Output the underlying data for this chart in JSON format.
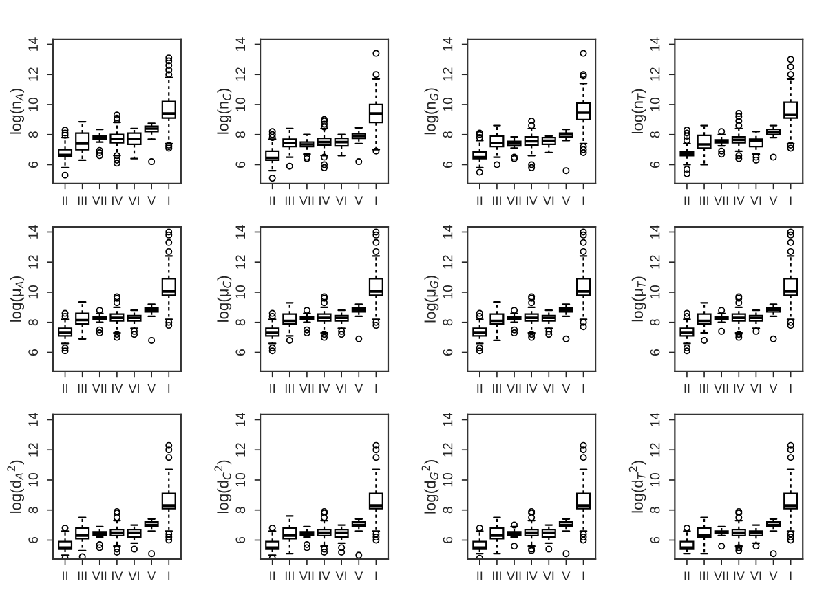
{
  "chart_data": [
    {
      "type": "box",
      "ylabel": "log(n$_{A}$)",
      "categories": [
        "II",
        "III",
        "VII",
        "IV",
        "VI",
        "V",
        "I"
      ],
      "ylim": [
        4.75,
        14.35
      ],
      "yticks": [
        6,
        8,
        10,
        12,
        14
      ],
      "boxes": [
        {
          "low": 5.8,
          "q1": 6.55,
          "median": 6.65,
          "q3": 7.0,
          "high": 7.8,
          "outliers": [
            5.3,
            7.95,
            8.1,
            8.3
          ]
        },
        {
          "low": 6.3,
          "q1": 7.0,
          "median": 7.4,
          "q3": 8.1,
          "high": 8.85
        },
        {
          "low": 7.5,
          "q1": 7.7,
          "median": 7.8,
          "q3": 7.9,
          "high": 8.35,
          "outliers": [
            6.6,
            6.8,
            6.95
          ]
        },
        {
          "low": 6.6,
          "q1": 7.45,
          "median": 7.7,
          "q3": 8.0,
          "high": 8.8,
          "outliers": [
            6.1,
            6.3,
            6.6,
            9.0,
            9.1,
            9.3
          ]
        },
        {
          "low": 6.4,
          "q1": 7.35,
          "median": 7.7,
          "q3": 8.1,
          "high": 8.4
        },
        {
          "low": 7.7,
          "q1": 8.2,
          "median": 8.4,
          "q3": 8.55,
          "high": 8.75,
          "outliers": [
            6.2
          ]
        },
        {
          "low": 7.4,
          "q1": 9.1,
          "median": 9.4,
          "q3": 10.2,
          "high": 11.8,
          "outliers": [
            7.1,
            7.2,
            7.3,
            12.0,
            12.3,
            12.6,
            12.9,
            13.1
          ]
        }
      ]
    },
    {
      "type": "box",
      "ylabel": "log(n$_{C}$)",
      "categories": [
        "II",
        "III",
        "VII",
        "IV",
        "VI",
        "V",
        "I"
      ],
      "ylim": [
        4.75,
        14.35
      ],
      "yticks": [
        6,
        8,
        10,
        12,
        14
      ],
      "boxes": [
        {
          "low": 5.6,
          "q1": 6.3,
          "median": 6.45,
          "q3": 6.9,
          "high": 7.7,
          "outliers": [
            5.1,
            7.8,
            8.0,
            8.2
          ]
        },
        {
          "low": 6.5,
          "q1": 7.2,
          "median": 7.45,
          "q3": 7.7,
          "high": 8.4,
          "outliers": [
            5.9
          ]
        },
        {
          "low": 6.7,
          "q1": 7.2,
          "median": 7.35,
          "q3": 7.5,
          "high": 8.0,
          "outliers": [
            6.4,
            6.5
          ]
        },
        {
          "low": 6.6,
          "q1": 7.3,
          "median": 7.5,
          "q3": 7.75,
          "high": 8.4,
          "outliers": [
            5.8,
            6.0,
            6.5,
            8.5,
            8.7,
            8.9,
            9.0
          ]
        },
        {
          "low": 6.6,
          "q1": 7.25,
          "median": 7.5,
          "q3": 7.75,
          "high": 8.0
        },
        {
          "low": 7.4,
          "q1": 7.75,
          "median": 7.9,
          "q3": 8.05,
          "high": 8.45,
          "outliers": [
            6.2
          ]
        },
        {
          "low": 7.0,
          "q1": 8.8,
          "median": 9.4,
          "q3": 10.0,
          "high": 11.7,
          "outliers": [
            6.9,
            12.0,
            13.4
          ]
        }
      ]
    },
    {
      "type": "box",
      "ylabel": "log(n$_{G}$)",
      "categories": [
        "II",
        "III",
        "VII",
        "IV",
        "VI",
        "V",
        "I"
      ],
      "ylim": [
        4.75,
        14.35
      ],
      "yticks": [
        6,
        8,
        10,
        12,
        14
      ],
      "boxes": [
        {
          "low": 5.8,
          "q1": 6.4,
          "median": 6.5,
          "q3": 6.85,
          "high": 7.6,
          "outliers": [
            5.5,
            7.8,
            8.0,
            8.1
          ]
        },
        {
          "low": 6.5,
          "q1": 7.2,
          "median": 7.45,
          "q3": 7.9,
          "high": 8.6,
          "outliers": [
            6.0
          ]
        },
        {
          "low": 7.1,
          "q1": 7.25,
          "median": 7.4,
          "q3": 7.55,
          "high": 7.85,
          "outliers": [
            6.4,
            6.5
          ]
        },
        {
          "low": 6.6,
          "q1": 7.3,
          "median": 7.55,
          "q3": 7.85,
          "high": 8.4,
          "outliers": [
            5.8,
            6.0,
            8.6,
            8.9
          ]
        },
        {
          "low": 6.8,
          "q1": 7.35,
          "median": 7.6,
          "q3": 7.8,
          "high": 7.9
        },
        {
          "low": 7.6,
          "q1": 7.85,
          "median": 8.0,
          "q3": 8.1,
          "high": 8.35,
          "outliers": [
            5.6
          ]
        },
        {
          "low": 7.4,
          "q1": 9.0,
          "median": 9.45,
          "q3": 10.1,
          "high": 11.4,
          "outliers": [
            6.8,
            7.0,
            7.2,
            11.9,
            12.0,
            13.4
          ]
        }
      ]
    },
    {
      "type": "box",
      "ylabel": "log(n$_{T}$)",
      "categories": [
        "II",
        "III",
        "VII",
        "IV",
        "VI",
        "V",
        "I"
      ],
      "ylim": [
        4.75,
        14.35
      ],
      "yticks": [
        6,
        8,
        10,
        12,
        14
      ],
      "boxes": [
        {
          "low": 6.0,
          "q1": 6.6,
          "median": 6.7,
          "q3": 6.85,
          "high": 7.4,
          "outliers": [
            5.4,
            5.7,
            7.6,
            7.9,
            8.1,
            8.3
          ]
        },
        {
          "low": 6.0,
          "q1": 7.1,
          "median": 7.35,
          "q3": 7.95,
          "high": 8.6
        },
        {
          "low": 7.25,
          "q1": 7.45,
          "median": 7.55,
          "q3": 7.65,
          "high": 8.0,
          "outliers": [
            6.7,
            6.9,
            8.2
          ]
        },
        {
          "low": 6.9,
          "q1": 7.45,
          "median": 7.65,
          "q3": 7.85,
          "high": 8.4,
          "outliers": [
            6.4,
            6.6,
            8.6,
            8.9,
            9.2,
            9.4
          ]
        },
        {
          "low": 6.7,
          "q1": 7.2,
          "median": 7.6,
          "q3": 7.7,
          "high": 8.2,
          "outliers": [
            6.3,
            6.5
          ]
        },
        {
          "low": 7.8,
          "q1": 8.0,
          "median": 8.15,
          "q3": 8.35,
          "high": 8.6,
          "outliers": [
            6.5
          ]
        },
        {
          "low": 7.4,
          "q1": 9.1,
          "median": 9.3,
          "q3": 10.15,
          "high": 11.7,
          "outliers": [
            7.1,
            7.3,
            12.0,
            12.5,
            13.0
          ]
        }
      ]
    },
    {
      "type": "box",
      "ylabel": "log(μ$_{A}$)",
      "categories": [
        "II",
        "III",
        "VII",
        "IV",
        "VI",
        "V",
        "I"
      ],
      "ylim": [
        4.75,
        14.35
      ],
      "yticks": [
        6,
        8,
        10,
        12,
        14
      ],
      "boxes": [
        {
          "low": 6.6,
          "q1": 7.1,
          "median": 7.3,
          "q3": 7.6,
          "high": 8.2,
          "outliers": [
            6.1,
            6.3,
            8.4,
            8.6
          ]
        },
        {
          "low": 6.9,
          "q1": 7.9,
          "median": 8.15,
          "q3": 8.6,
          "high": 9.35
        },
        {
          "low": 8.0,
          "q1": 8.2,
          "median": 8.3,
          "q3": 8.35,
          "high": 8.6,
          "outliers": [
            7.3,
            7.5,
            8.8
          ]
        },
        {
          "low": 7.3,
          "q1": 8.1,
          "median": 8.3,
          "q3": 8.55,
          "high": 9.0,
          "outliers": [
            7.0,
            7.2,
            9.3,
            9.6,
            9.7
          ]
        },
        {
          "low": 7.6,
          "q1": 8.1,
          "median": 8.3,
          "q3": 8.45,
          "high": 8.8,
          "outliers": [
            7.2,
            7.4
          ]
        },
        {
          "low": 8.4,
          "q1": 8.7,
          "median": 8.8,
          "q3": 8.95,
          "high": 9.2,
          "outliers": [
            6.8
          ]
        },
        {
          "low": 8.2,
          "q1": 9.8,
          "median": 10.05,
          "q3": 10.9,
          "high": 12.4,
          "outliers": [
            7.8,
            8.0,
            12.7,
            13.3,
            13.8,
            14.0
          ]
        }
      ]
    },
    {
      "type": "box",
      "ylabel": "log(μ$_{C}$)",
      "categories": [
        "II",
        "III",
        "VII",
        "IV",
        "VI",
        "V",
        "I"
      ],
      "ylim": [
        4.75,
        14.35
      ],
      "yticks": [
        6,
        8,
        10,
        12,
        14
      ],
      "boxes": [
        {
          "low": 6.6,
          "q1": 7.1,
          "median": 7.3,
          "q3": 7.6,
          "high": 8.2,
          "outliers": [
            6.1,
            6.3,
            8.4,
            8.6
          ]
        },
        {
          "low": 7.1,
          "q1": 7.9,
          "median": 8.1,
          "q3": 8.55,
          "high": 9.3,
          "outliers": [
            6.8
          ]
        },
        {
          "low": 8.0,
          "q1": 8.2,
          "median": 8.3,
          "q3": 8.35,
          "high": 8.6,
          "outliers": [
            7.3,
            7.5,
            8.8
          ]
        },
        {
          "low": 7.3,
          "q1": 8.1,
          "median": 8.3,
          "q3": 8.55,
          "high": 9.0,
          "outliers": [
            7.0,
            7.2,
            9.3,
            9.6,
            9.7
          ]
        },
        {
          "low": 7.6,
          "q1": 8.1,
          "median": 8.3,
          "q3": 8.45,
          "high": 8.8,
          "outliers": [
            7.2,
            7.4
          ]
        },
        {
          "low": 8.4,
          "q1": 8.7,
          "median": 8.8,
          "q3": 8.95,
          "high": 9.2,
          "outliers": [
            6.9
          ]
        },
        {
          "low": 8.2,
          "q1": 9.8,
          "median": 10.05,
          "q3": 10.9,
          "high": 12.4,
          "outliers": [
            7.8,
            8.0,
            12.7,
            13.3,
            13.8,
            14.0
          ]
        }
      ]
    },
    {
      "type": "box",
      "ylabel": "log(μ$_{G}$)",
      "categories": [
        "II",
        "III",
        "VII",
        "IV",
        "VI",
        "V",
        "I"
      ],
      "ylim": [
        4.75,
        14.35
      ],
      "yticks": [
        6,
        8,
        10,
        12,
        14
      ],
      "boxes": [
        {
          "low": 6.6,
          "q1": 7.1,
          "median": 7.3,
          "q3": 7.6,
          "high": 8.2,
          "outliers": [
            6.1,
            6.3,
            8.4,
            8.6
          ]
        },
        {
          "low": 6.8,
          "q1": 7.9,
          "median": 8.1,
          "q3": 8.55,
          "high": 9.35
        },
        {
          "low": 8.0,
          "q1": 8.2,
          "median": 8.3,
          "q3": 8.35,
          "high": 8.6,
          "outliers": [
            7.3,
            7.5,
            8.8
          ]
        },
        {
          "low": 7.3,
          "q1": 8.1,
          "median": 8.3,
          "q3": 8.55,
          "high": 9.0,
          "outliers": [
            7.0,
            7.2,
            9.3,
            9.6,
            9.7
          ]
        },
        {
          "low": 7.6,
          "q1": 8.1,
          "median": 8.3,
          "q3": 8.45,
          "high": 8.8,
          "outliers": [
            7.2,
            7.4
          ]
        },
        {
          "low": 8.4,
          "q1": 8.7,
          "median": 8.8,
          "q3": 8.95,
          "high": 9.2,
          "outliers": [
            6.9
          ]
        },
        {
          "low": 8.2,
          "q1": 9.8,
          "median": 10.05,
          "q3": 10.9,
          "high": 12.4,
          "outliers": [
            7.7,
            8.0,
            12.7,
            13.3,
            13.8,
            14.0
          ]
        }
      ]
    },
    {
      "type": "box",
      "ylabel": "log(μ$_{T}$)",
      "categories": [
        "II",
        "III",
        "VII",
        "IV",
        "VI",
        "V",
        "I"
      ],
      "ylim": [
        4.75,
        14.35
      ],
      "yticks": [
        6,
        8,
        10,
        12,
        14
      ],
      "boxes": [
        {
          "low": 6.6,
          "q1": 7.1,
          "median": 7.3,
          "q3": 7.6,
          "high": 8.2,
          "outliers": [
            6.1,
            6.3,
            8.4,
            8.6
          ]
        },
        {
          "low": 7.3,
          "q1": 7.9,
          "median": 8.1,
          "q3": 8.55,
          "high": 9.3,
          "outliers": [
            6.8
          ]
        },
        {
          "low": 8.0,
          "q1": 8.2,
          "median": 8.3,
          "q3": 8.35,
          "high": 8.6,
          "outliers": [
            7.4,
            8.8
          ]
        },
        {
          "low": 7.3,
          "q1": 8.1,
          "median": 8.3,
          "q3": 8.55,
          "high": 9.0,
          "outliers": [
            7.0,
            7.2,
            9.3,
            9.6,
            9.7
          ]
        },
        {
          "low": 7.6,
          "q1": 8.1,
          "median": 8.3,
          "q3": 8.45,
          "high": 8.8,
          "outliers": [
            7.4
          ]
        },
        {
          "low": 8.4,
          "q1": 8.7,
          "median": 8.85,
          "q3": 8.95,
          "high": 9.2,
          "outliers": [
            6.9
          ]
        },
        {
          "low": 8.2,
          "q1": 9.8,
          "median": 10.05,
          "q3": 10.9,
          "high": 12.4,
          "outliers": [
            7.8,
            8.0,
            12.7,
            13.3,
            13.8,
            14.0
          ]
        }
      ]
    },
    {
      "type": "box",
      "ylabel": "log(d$_{A}$$^{2}$)",
      "categories": [
        "II",
        "III",
        "VII",
        "IV",
        "VI",
        "V",
        "I"
      ],
      "ylim": [
        4.75,
        14.35
      ],
      "yticks": [
        6,
        8,
        10,
        12,
        14
      ],
      "boxes": [
        {
          "low": 5.0,
          "q1": 5.4,
          "median": 5.5,
          "q3": 5.9,
          "high": 6.6,
          "outliers": [
            4.8,
            6.8
          ]
        },
        {
          "low": 5.3,
          "q1": 6.1,
          "median": 6.3,
          "q3": 6.8,
          "high": 7.5,
          "outliers": [
            4.9
          ]
        },
        {
          "low": 6.2,
          "q1": 6.35,
          "median": 6.45,
          "q3": 6.55,
          "high": 6.9,
          "outliers": [
            5.5,
            5.7
          ]
        },
        {
          "low": 5.6,
          "q1": 6.3,
          "median": 6.5,
          "q3": 6.7,
          "high": 7.3,
          "outliers": [
            5.2,
            5.4,
            7.5,
            7.8,
            7.9
          ]
        },
        {
          "low": 5.8,
          "q1": 6.2,
          "median": 6.5,
          "q3": 6.7,
          "high": 7.0,
          "outliers": [
            5.4
          ]
        },
        {
          "low": 6.6,
          "q1": 6.9,
          "median": 7.0,
          "q3": 7.2,
          "high": 7.4,
          "outliers": [
            5.1
          ]
        },
        {
          "low": 6.6,
          "q1": 8.1,
          "median": 8.3,
          "q3": 9.1,
          "high": 10.7,
          "outliers": [
            6.0,
            6.2,
            6.4,
            11.5,
            12.0,
            12.3
          ]
        }
      ]
    },
    {
      "type": "box",
      "ylabel": "log(d$_{C}$$^{2}$)",
      "categories": [
        "II",
        "III",
        "VII",
        "IV",
        "VI",
        "V",
        "I"
      ],
      "ylim": [
        4.75,
        14.35
      ],
      "yticks": [
        6,
        8,
        10,
        12,
        14
      ],
      "boxes": [
        {
          "low": 5.0,
          "q1": 5.4,
          "median": 5.5,
          "q3": 5.9,
          "high": 6.6,
          "outliers": [
            4.8,
            6.8
          ]
        },
        {
          "low": 5.1,
          "q1": 6.1,
          "median": 6.3,
          "q3": 6.8,
          "high": 7.6
        },
        {
          "low": 6.2,
          "q1": 6.35,
          "median": 6.45,
          "q3": 6.55,
          "high": 6.9,
          "outliers": [
            5.5,
            5.7
          ]
        },
        {
          "low": 5.6,
          "q1": 6.3,
          "median": 6.5,
          "q3": 6.7,
          "high": 7.3,
          "outliers": [
            5.2,
            5.4,
            7.5,
            7.8,
            7.9
          ]
        },
        {
          "low": 5.8,
          "q1": 6.2,
          "median": 6.5,
          "q3": 6.7,
          "high": 7.0,
          "outliers": [
            5.2,
            5.5
          ]
        },
        {
          "low": 6.6,
          "q1": 6.9,
          "median": 7.0,
          "q3": 7.2,
          "high": 7.4,
          "outliers": [
            5.0
          ]
        },
        {
          "low": 6.6,
          "q1": 8.1,
          "median": 8.3,
          "q3": 9.1,
          "high": 10.7,
          "outliers": [
            6.0,
            6.2,
            6.4,
            11.5,
            12.0,
            12.3
          ]
        }
      ]
    },
    {
      "type": "box",
      "ylabel": "log(d$_{G}$$^{2}$)",
      "categories": [
        "II",
        "III",
        "VII",
        "IV",
        "VI",
        "V",
        "I"
      ],
      "ylim": [
        4.75,
        14.35
      ],
      "yticks": [
        6,
        8,
        10,
        12,
        14
      ],
      "boxes": [
        {
          "low": 5.1,
          "q1": 5.4,
          "median": 5.5,
          "q3": 5.9,
          "high": 6.6,
          "outliers": [
            4.8,
            6.8
          ]
        },
        {
          "low": 5.1,
          "q1": 6.1,
          "median": 6.3,
          "q3": 6.8,
          "high": 7.5
        },
        {
          "low": 6.2,
          "q1": 6.35,
          "median": 6.45,
          "q3": 6.55,
          "high": 6.9,
          "outliers": [
            5.6,
            7.0
          ]
        },
        {
          "low": 5.6,
          "q1": 6.3,
          "median": 6.5,
          "q3": 6.7,
          "high": 7.3,
          "outliers": [
            5.3,
            5.4,
            7.5,
            7.8,
            7.9
          ]
        },
        {
          "low": 5.8,
          "q1": 6.2,
          "median": 6.5,
          "q3": 6.7,
          "high": 7.0,
          "outliers": [
            5.4
          ]
        },
        {
          "low": 6.6,
          "q1": 6.9,
          "median": 7.0,
          "q3": 7.2,
          "high": 7.4,
          "outliers": [
            5.1
          ]
        },
        {
          "low": 6.6,
          "q1": 8.1,
          "median": 8.3,
          "q3": 9.1,
          "high": 10.7,
          "outliers": [
            6.0,
            6.2,
            6.4,
            11.5,
            12.0,
            12.3
          ]
        }
      ]
    },
    {
      "type": "box",
      "ylabel": "log(d$_{T}$$^{2}$)",
      "categories": [
        "II",
        "III",
        "VII",
        "IV",
        "VI",
        "V",
        "I"
      ],
      "ylim": [
        4.75,
        14.35
      ],
      "yticks": [
        6,
        8,
        10,
        12,
        14
      ],
      "boxes": [
        {
          "low": 5.1,
          "q1": 5.4,
          "median": 5.5,
          "q3": 5.9,
          "high": 6.6,
          "outliers": [
            6.8
          ]
        },
        {
          "low": 5.1,
          "q1": 6.2,
          "median": 6.3,
          "q3": 6.8,
          "high": 7.5
        },
        {
          "low": 6.3,
          "q1": 6.45,
          "median": 6.5,
          "q3": 6.6,
          "high": 6.9,
          "outliers": [
            5.6
          ]
        },
        {
          "low": 5.6,
          "q1": 6.3,
          "median": 6.5,
          "q3": 6.7,
          "high": 7.3,
          "outliers": [
            5.3,
            5.5,
            7.5,
            7.8,
            7.9
          ]
        },
        {
          "low": 5.8,
          "q1": 6.3,
          "median": 6.5,
          "q3": 6.6,
          "high": 7.0,
          "outliers": [
            5.6
          ]
        },
        {
          "low": 6.6,
          "q1": 6.9,
          "median": 7.0,
          "q3": 7.2,
          "high": 7.4,
          "outliers": [
            5.1
          ]
        },
        {
          "low": 6.6,
          "q1": 8.1,
          "median": 8.3,
          "q3": 9.1,
          "high": 10.7,
          "outliers": [
            6.0,
            6.2,
            6.4,
            11.5,
            12.0,
            12.3
          ]
        }
      ]
    }
  ]
}
